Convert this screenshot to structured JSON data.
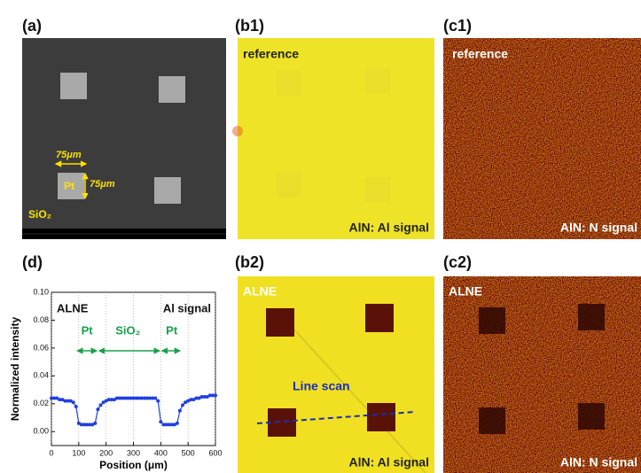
{
  "figure": {
    "panel_a": {
      "label": "(a)",
      "width_label": "75μm",
      "height_label": "75μm",
      "pt_label": "Pt",
      "substrate_label": "SiO₂"
    },
    "panel_b1": {
      "label": "(b1)",
      "sample": "reference",
      "signal": "AlN: Al signal"
    },
    "panel_c1": {
      "label": "(c1)",
      "sample": "reference",
      "signal": "AlN: N signal"
    },
    "panel_d": {
      "label": "(d)"
    },
    "panel_b2": {
      "label": "(b2)",
      "sample": "ALNE",
      "line_scan": "Line scan",
      "signal": "AlN: Al signal"
    },
    "panel_c2": {
      "label": "(c2)",
      "sample": "ALNE",
      "signal": "AlN: N signal"
    }
  },
  "chart_data": {
    "type": "line",
    "xlabel": "Position (μm)",
    "ylabel": "Normalized intensity",
    "annotations": [
      "ALNE",
      "Al signal",
      "Pt",
      "SiO₂",
      "Pt"
    ],
    "xlim": [
      0,
      600
    ],
    "xticks": [
      0,
      100,
      200,
      300,
      400,
      500,
      600
    ],
    "ylim": [
      -0.01,
      0.1
    ],
    "yticks": [
      {
        "value": 0,
        "label": "0.00"
      },
      {
        "value": 0.02,
        "label": "0.02"
      },
      {
        "value": 0.04,
        "label": "0.04"
      },
      {
        "value": 0.06,
        "label": "0.06"
      },
      {
        "value": 0.08,
        "label": "0.08"
      },
      {
        "value": 0.1,
        "label": "0.10"
      }
    ],
    "grid": "x",
    "series": [
      {
        "name": "Al signal",
        "color": "#1f3fe0",
        "x": [
          0,
          10,
          20,
          30,
          40,
          50,
          60,
          70,
          80,
          90,
          100,
          110,
          120,
          130,
          140,
          150,
          160,
          170,
          180,
          190,
          200,
          210,
          220,
          230,
          240,
          250,
          260,
          270,
          280,
          290,
          300,
          310,
          320,
          330,
          340,
          350,
          360,
          370,
          380,
          390,
          400,
          410,
          420,
          430,
          440,
          450,
          460,
          470,
          480,
          490,
          500,
          510,
          520,
          530,
          540,
          550,
          560,
          570,
          580,
          590,
          600
        ],
        "values": [
          0.024,
          0.024,
          0.024,
          0.023,
          0.023,
          0.022,
          0.022,
          0.022,
          0.021,
          0.018,
          0.006,
          0.005,
          0.005,
          0.005,
          0.005,
          0.005,
          0.006,
          0.016,
          0.019,
          0.021,
          0.022,
          0.023,
          0.023,
          0.023,
          0.024,
          0.024,
          0.024,
          0.024,
          0.024,
          0.024,
          0.024,
          0.024,
          0.024,
          0.024,
          0.024,
          0.024,
          0.024,
          0.024,
          0.024,
          0.022,
          0.007,
          0.005,
          0.005,
          0.005,
          0.005,
          0.005,
          0.006,
          0.015,
          0.019,
          0.021,
          0.022,
          0.023,
          0.023,
          0.024,
          0.024,
          0.025,
          0.025,
          0.025,
          0.026,
          0.026,
          0.026
        ]
      }
    ]
  }
}
